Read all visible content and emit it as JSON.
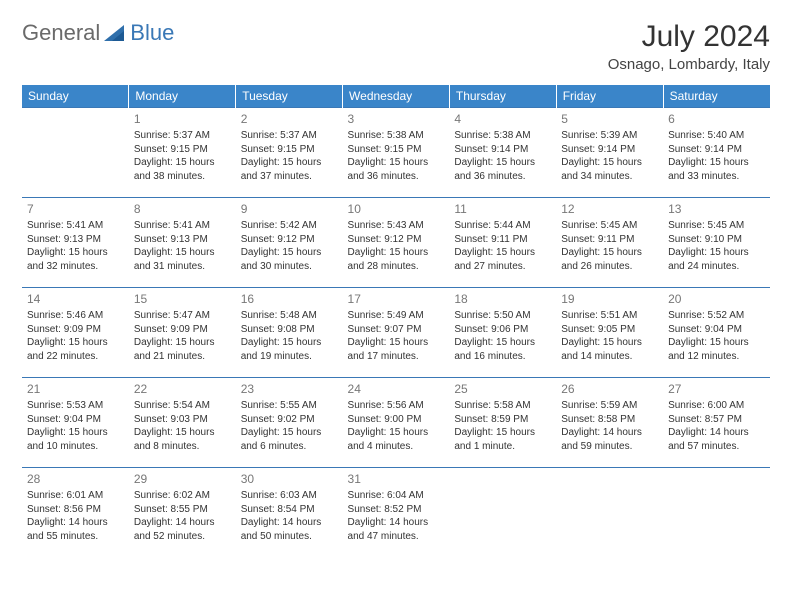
{
  "brand": {
    "text_general": "General",
    "text_blue": "Blue",
    "icon_color": "#2f6fab"
  },
  "header": {
    "month_title": "July 2024",
    "location": "Osnago, Lombardy, Italy"
  },
  "colors": {
    "header_bg": "#3a85c9",
    "header_text": "#ffffff",
    "row_border": "#3a78b6",
    "daynum": "#777777",
    "body_text": "#333333"
  },
  "day_names": [
    "Sunday",
    "Monday",
    "Tuesday",
    "Wednesday",
    "Thursday",
    "Friday",
    "Saturday"
  ],
  "weeks": [
    [
      null,
      {
        "n": "1",
        "sr": "Sunrise: 5:37 AM",
        "ss": "Sunset: 9:15 PM",
        "d1": "Daylight: 15 hours",
        "d2": "and 38 minutes."
      },
      {
        "n": "2",
        "sr": "Sunrise: 5:37 AM",
        "ss": "Sunset: 9:15 PM",
        "d1": "Daylight: 15 hours",
        "d2": "and 37 minutes."
      },
      {
        "n": "3",
        "sr": "Sunrise: 5:38 AM",
        "ss": "Sunset: 9:15 PM",
        "d1": "Daylight: 15 hours",
        "d2": "and 36 minutes."
      },
      {
        "n": "4",
        "sr": "Sunrise: 5:38 AM",
        "ss": "Sunset: 9:14 PM",
        "d1": "Daylight: 15 hours",
        "d2": "and 36 minutes."
      },
      {
        "n": "5",
        "sr": "Sunrise: 5:39 AM",
        "ss": "Sunset: 9:14 PM",
        "d1": "Daylight: 15 hours",
        "d2": "and 34 minutes."
      },
      {
        "n": "6",
        "sr": "Sunrise: 5:40 AM",
        "ss": "Sunset: 9:14 PM",
        "d1": "Daylight: 15 hours",
        "d2": "and 33 minutes."
      }
    ],
    [
      {
        "n": "7",
        "sr": "Sunrise: 5:41 AM",
        "ss": "Sunset: 9:13 PM",
        "d1": "Daylight: 15 hours",
        "d2": "and 32 minutes."
      },
      {
        "n": "8",
        "sr": "Sunrise: 5:41 AM",
        "ss": "Sunset: 9:13 PM",
        "d1": "Daylight: 15 hours",
        "d2": "and 31 minutes."
      },
      {
        "n": "9",
        "sr": "Sunrise: 5:42 AM",
        "ss": "Sunset: 9:12 PM",
        "d1": "Daylight: 15 hours",
        "d2": "and 30 minutes."
      },
      {
        "n": "10",
        "sr": "Sunrise: 5:43 AM",
        "ss": "Sunset: 9:12 PM",
        "d1": "Daylight: 15 hours",
        "d2": "and 28 minutes."
      },
      {
        "n": "11",
        "sr": "Sunrise: 5:44 AM",
        "ss": "Sunset: 9:11 PM",
        "d1": "Daylight: 15 hours",
        "d2": "and 27 minutes."
      },
      {
        "n": "12",
        "sr": "Sunrise: 5:45 AM",
        "ss": "Sunset: 9:11 PM",
        "d1": "Daylight: 15 hours",
        "d2": "and 26 minutes."
      },
      {
        "n": "13",
        "sr": "Sunrise: 5:45 AM",
        "ss": "Sunset: 9:10 PM",
        "d1": "Daylight: 15 hours",
        "d2": "and 24 minutes."
      }
    ],
    [
      {
        "n": "14",
        "sr": "Sunrise: 5:46 AM",
        "ss": "Sunset: 9:09 PM",
        "d1": "Daylight: 15 hours",
        "d2": "and 22 minutes."
      },
      {
        "n": "15",
        "sr": "Sunrise: 5:47 AM",
        "ss": "Sunset: 9:09 PM",
        "d1": "Daylight: 15 hours",
        "d2": "and 21 minutes."
      },
      {
        "n": "16",
        "sr": "Sunrise: 5:48 AM",
        "ss": "Sunset: 9:08 PM",
        "d1": "Daylight: 15 hours",
        "d2": "and 19 minutes."
      },
      {
        "n": "17",
        "sr": "Sunrise: 5:49 AM",
        "ss": "Sunset: 9:07 PM",
        "d1": "Daylight: 15 hours",
        "d2": "and 17 minutes."
      },
      {
        "n": "18",
        "sr": "Sunrise: 5:50 AM",
        "ss": "Sunset: 9:06 PM",
        "d1": "Daylight: 15 hours",
        "d2": "and 16 minutes."
      },
      {
        "n": "19",
        "sr": "Sunrise: 5:51 AM",
        "ss": "Sunset: 9:05 PM",
        "d1": "Daylight: 15 hours",
        "d2": "and 14 minutes."
      },
      {
        "n": "20",
        "sr": "Sunrise: 5:52 AM",
        "ss": "Sunset: 9:04 PM",
        "d1": "Daylight: 15 hours",
        "d2": "and 12 minutes."
      }
    ],
    [
      {
        "n": "21",
        "sr": "Sunrise: 5:53 AM",
        "ss": "Sunset: 9:04 PM",
        "d1": "Daylight: 15 hours",
        "d2": "and 10 minutes."
      },
      {
        "n": "22",
        "sr": "Sunrise: 5:54 AM",
        "ss": "Sunset: 9:03 PM",
        "d1": "Daylight: 15 hours",
        "d2": "and 8 minutes."
      },
      {
        "n": "23",
        "sr": "Sunrise: 5:55 AM",
        "ss": "Sunset: 9:02 PM",
        "d1": "Daylight: 15 hours",
        "d2": "and 6 minutes."
      },
      {
        "n": "24",
        "sr": "Sunrise: 5:56 AM",
        "ss": "Sunset: 9:00 PM",
        "d1": "Daylight: 15 hours",
        "d2": "and 4 minutes."
      },
      {
        "n": "25",
        "sr": "Sunrise: 5:58 AM",
        "ss": "Sunset: 8:59 PM",
        "d1": "Daylight: 15 hours",
        "d2": "and 1 minute."
      },
      {
        "n": "26",
        "sr": "Sunrise: 5:59 AM",
        "ss": "Sunset: 8:58 PM",
        "d1": "Daylight: 14 hours",
        "d2": "and 59 minutes."
      },
      {
        "n": "27",
        "sr": "Sunrise: 6:00 AM",
        "ss": "Sunset: 8:57 PM",
        "d1": "Daylight: 14 hours",
        "d2": "and 57 minutes."
      }
    ],
    [
      {
        "n": "28",
        "sr": "Sunrise: 6:01 AM",
        "ss": "Sunset: 8:56 PM",
        "d1": "Daylight: 14 hours",
        "d2": "and 55 minutes."
      },
      {
        "n": "29",
        "sr": "Sunrise: 6:02 AM",
        "ss": "Sunset: 8:55 PM",
        "d1": "Daylight: 14 hours",
        "d2": "and 52 minutes."
      },
      {
        "n": "30",
        "sr": "Sunrise: 6:03 AM",
        "ss": "Sunset: 8:54 PM",
        "d1": "Daylight: 14 hours",
        "d2": "and 50 minutes."
      },
      {
        "n": "31",
        "sr": "Sunrise: 6:04 AM",
        "ss": "Sunset: 8:52 PM",
        "d1": "Daylight: 14 hours",
        "d2": "and 47 minutes."
      },
      null,
      null,
      null
    ]
  ]
}
